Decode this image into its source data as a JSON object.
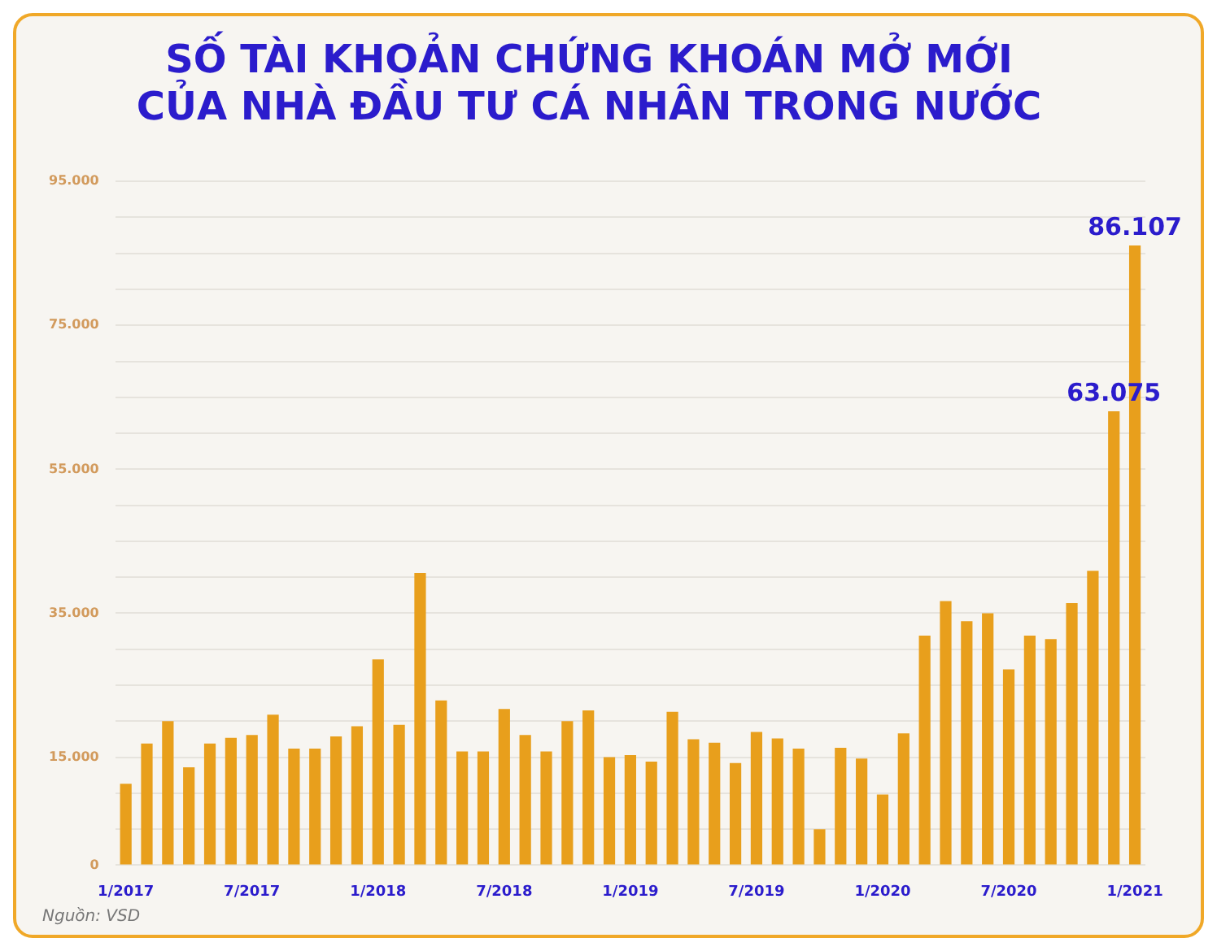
{
  "chart_data": {
    "type": "bar",
    "title": "SỐ TÀI KHOẢN CHỨNG KHOÁN MỞ MỚI\nCỦA NHÀ ĐẦU TƯ CÁ NHÂN TRONG NƯỚC",
    "categories": [
      "1/2017",
      null,
      null,
      null,
      null,
      null,
      "7/2017",
      null,
      null,
      null,
      null,
      null,
      "1/2018",
      null,
      null,
      null,
      null,
      null,
      "7/2018",
      null,
      null,
      null,
      null,
      null,
      "1/2019",
      null,
      null,
      null,
      null,
      null,
      "7/2019",
      null,
      null,
      null,
      null,
      null,
      "1/2020",
      null,
      null,
      null,
      null,
      null,
      "7/2020",
      null,
      null,
      null,
      null,
      null,
      "1/2021"
    ],
    "values": [
      11300,
      16900,
      20000,
      13600,
      16900,
      17700,
      18100,
      20900,
      16200,
      16200,
      17900,
      19300,
      28600,
      19500,
      40600,
      22900,
      15800,
      15800,
      21700,
      18100,
      15800,
      20000,
      21500,
      15000,
      15300,
      14400,
      21300,
      17500,
      17000,
      14200,
      18500,
      17600,
      16200,
      5000,
      16300,
      14800,
      9800,
      18300,
      31900,
      36700,
      33900,
      35000,
      27200,
      31900,
      31400,
      36400,
      40900,
      63075,
      86107
    ],
    "value_labels": [
      null,
      null,
      null,
      null,
      null,
      null,
      null,
      null,
      null,
      null,
      null,
      null,
      null,
      null,
      null,
      null,
      null,
      null,
      null,
      null,
      null,
      null,
      null,
      null,
      null,
      null,
      null,
      null,
      null,
      null,
      null,
      null,
      null,
      null,
      null,
      null,
      null,
      null,
      null,
      null,
      null,
      null,
      null,
      null,
      null,
      null,
      null,
      "63.075",
      "86.107"
    ],
    "color": "#e89f1c",
    "ylim": [
      0,
      95000
    ],
    "yticks": [
      {
        "value": 0,
        "label": "0"
      },
      {
        "value": 5000,
        "label": null
      },
      {
        "value": 10000,
        "label": null
      },
      {
        "value": 15000,
        "label": "15.000"
      },
      {
        "value": 20000,
        "label": null
      },
      {
        "value": 25000,
        "label": null
      },
      {
        "value": 30000,
        "label": null
      },
      {
        "value": 35000,
        "label": "35.000"
      },
      {
        "value": 40000,
        "label": null
      },
      {
        "value": 45000,
        "label": null
      },
      {
        "value": 50000,
        "label": null
      },
      {
        "value": 55000,
        "label": "55.000"
      },
      {
        "value": 60000,
        "label": null
      },
      {
        "value": 65000,
        "label": null
      },
      {
        "value": 70000,
        "label": null
      },
      {
        "value": 75000,
        "label": "75.000"
      },
      {
        "value": 80000,
        "label": null
      },
      {
        "value": 85000,
        "label": null
      },
      {
        "value": 90000,
        "label": null
      },
      {
        "value": 95000,
        "label": "95.000"
      }
    ],
    "grid": "y",
    "annotations": [
      "Nguồn: VSD"
    ]
  }
}
